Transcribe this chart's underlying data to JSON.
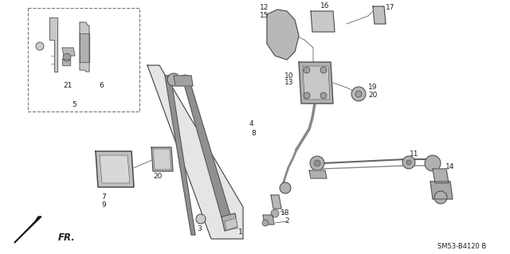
{
  "bg_color": "#ffffff",
  "fig_width": 6.4,
  "fig_height": 3.19,
  "dpi": 100,
  "diagram_code": "SM53-B4120 B",
  "fr_label": "FR.",
  "lc": "#444444",
  "lc_dark": "#222222",
  "fill_light": "#d8d8d8",
  "fill_mid": "#b8b8b8",
  "fill_dark": "#888888",
  "font_size_label": 6.5,
  "font_size_code": 6.0
}
